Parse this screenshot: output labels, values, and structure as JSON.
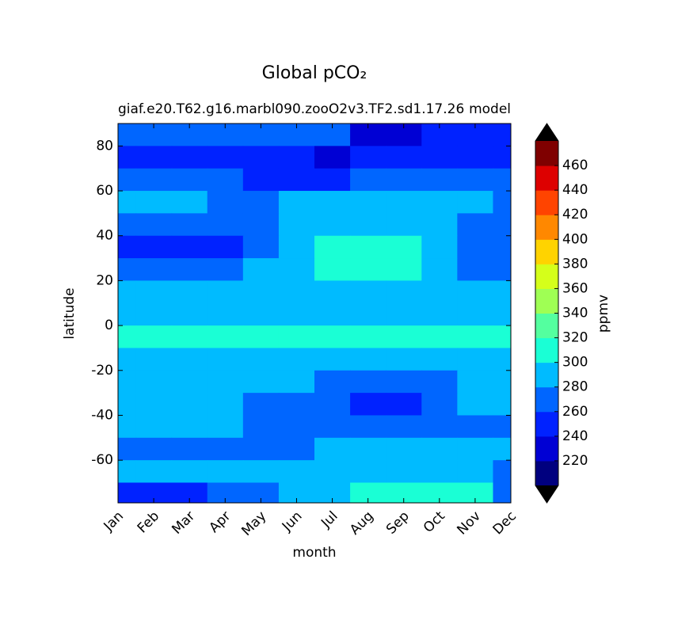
{
  "chart_data": {
    "type": "contourf",
    "title": "Global pCO₂",
    "subtitle_left": "giaf.e20.T62.g16.marbl090.zooO2v3.TF2.sd1.17.26",
    "subtitle_right": "model",
    "x_label": "month",
    "y_label": "latitude",
    "categories": [
      "Jan",
      "Feb",
      "Mar",
      "Apr",
      "May",
      "Jun",
      "Jul",
      "Aug",
      "Sep",
      "Oct",
      "Nov",
      "Dec"
    ],
    "xlim": [
      0,
      11
    ],
    "y": [
      85,
      75,
      65,
      55,
      45,
      35,
      25,
      15,
      5,
      -5,
      -15,
      -25,
      -35,
      -45,
      -55,
      -65,
      -75
    ],
    "ylim": [
      -79,
      90
    ],
    "yticks": [
      -60,
      -40,
      -20,
      0,
      20,
      40,
      60,
      80
    ],
    "z": [
      [
        265,
        265,
        265,
        265,
        265,
        265,
        265,
        235,
        235,
        250,
        250,
        250
      ],
      [
        250,
        250,
        250,
        250,
        250,
        250,
        235,
        250,
        250,
        250,
        250,
        250
      ],
      [
        265,
        265,
        265,
        265,
        250,
        250,
        250,
        265,
        265,
        265,
        265,
        265
      ],
      [
        290,
        290,
        290,
        270,
        265,
        285,
        285,
        285,
        285,
        285,
        285,
        270
      ],
      [
        270,
        270,
        270,
        270,
        275,
        290,
        290,
        290,
        290,
        290,
        270,
        270
      ],
      [
        250,
        250,
        250,
        250,
        270,
        285,
        305,
        305,
        305,
        285,
        270,
        270
      ],
      [
        270,
        270,
        270,
        275,
        285,
        290,
        305,
        305,
        305,
        290,
        275,
        275
      ],
      [
        290,
        290,
        290,
        290,
        290,
        290,
        290,
        290,
        290,
        290,
        290,
        290
      ],
      [
        295,
        295,
        295,
        295,
        295,
        295,
        295,
        295,
        295,
        295,
        295,
        295
      ],
      [
        305,
        305,
        305,
        305,
        305,
        305,
        305,
        305,
        305,
        305,
        305,
        305
      ],
      [
        290,
        290,
        290,
        290,
        290,
        290,
        290,
        290,
        290,
        290,
        290,
        290
      ],
      [
        290,
        290,
        290,
        290,
        290,
        290,
        275,
        275,
        275,
        275,
        290,
        290
      ],
      [
        290,
        290,
        290,
        290,
        275,
        275,
        275,
        255,
        255,
        275,
        285,
        290
      ],
      [
        290,
        290,
        290,
        290,
        275,
        275,
        275,
        275,
        275,
        275,
        275,
        275
      ],
      [
        275,
        275,
        275,
        275,
        275,
        275,
        290,
        290,
        290,
        290,
        290,
        280
      ],
      [
        290,
        290,
        290,
        290,
        290,
        290,
        290,
        290,
        290,
        290,
        290,
        275
      ],
      [
        250,
        250,
        250,
        270,
        270,
        290,
        290,
        310,
        310,
        310,
        300,
        270
      ]
    ],
    "colorbar": {
      "label": "ppmv",
      "levels": [
        200,
        220,
        240,
        260,
        280,
        300,
        320,
        340,
        360,
        380,
        400,
        420,
        440,
        460,
        480
      ],
      "colors": [
        "#00007f",
        "#0000d4",
        "#0022ff",
        "#0066ff",
        "#00bbff",
        "#1affd5",
        "#54ff9f",
        "#9fff54",
        "#d5ff1a",
        "#ffd300",
        "#ff8800",
        "#ff4400",
        "#dd0000",
        "#7f0000"
      ],
      "under_color": "#000000",
      "over_color": "#000000",
      "ticks": [
        220,
        240,
        260,
        280,
        300,
        320,
        340,
        360,
        380,
        400,
        420,
        440,
        460
      ]
    }
  }
}
